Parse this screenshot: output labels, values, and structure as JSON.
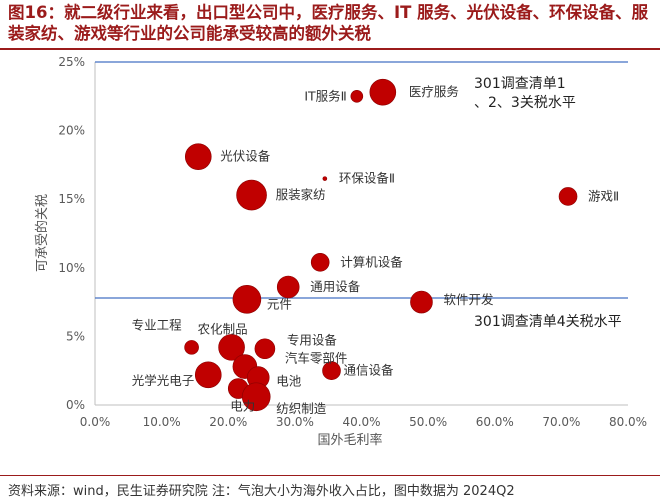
{
  "title": "图16：就二级行业来看，出口型公司中，医疗服务、IT 服务、光伏设备、环保设备、服装家纺、游戏等行业的公司能承受较高的额外关税",
  "source_note": "资料来源：wind，民生证券研究院 注：气泡大小为海外收入占比，图中数据为 2024Q2",
  "colors": {
    "title": "#9b1b1b",
    "bubble": "#c00000",
    "bubble_edge": "#8b0000",
    "refline": "#4472c4",
    "axis": "#bfbfbf"
  },
  "chart_data": {
    "type": "scatter",
    "subtype": "bubble",
    "xlabel": "国外毛利率",
    "ylabel": "可承受的关税",
    "xlim": [
      0,
      0.8
    ],
    "ylim": [
      0,
      0.25
    ],
    "x_ticks": [
      "0.0%",
      "10.0%",
      "20.0%",
      "30.0%",
      "40.0%",
      "50.0%",
      "60.0%",
      "70.0%",
      "80.0%"
    ],
    "y_ticks": [
      "0%",
      "5%",
      "10%",
      "15%",
      "20%",
      "25%"
    ],
    "grid": false,
    "reference_lines": [
      {
        "y": 0.25,
        "label": "301调查清单1、2、3关税水平"
      },
      {
        "y": 0.078,
        "label": "301调查清单4关税水平"
      }
    ],
    "points": [
      {
        "label": "医疗服务",
        "x": 0.432,
        "y": 0.228,
        "size": 13
      },
      {
        "label": "IT服务Ⅱ",
        "x": 0.393,
        "y": 0.225,
        "size": 6
      },
      {
        "label": "光伏设备",
        "x": 0.155,
        "y": 0.181,
        "size": 13
      },
      {
        "label": "环保设备Ⅱ",
        "x": 0.345,
        "y": 0.165,
        "size": 2
      },
      {
        "label": "服装家纺",
        "x": 0.235,
        "y": 0.153,
        "size": 15
      },
      {
        "label": "游戏Ⅱ",
        "x": 0.71,
        "y": 0.152,
        "size": 9
      },
      {
        "label": "计算机设备",
        "x": 0.338,
        "y": 0.104,
        "size": 9
      },
      {
        "label": "通用设备",
        "x": 0.29,
        "y": 0.086,
        "size": 11
      },
      {
        "label": "元件",
        "x": 0.228,
        "y": 0.077,
        "size": 14
      },
      {
        "label": "软件开发",
        "x": 0.49,
        "y": 0.075,
        "size": 11
      },
      {
        "label": "专业工程",
        "x": 0.145,
        "y": 0.042,
        "size": 7
      },
      {
        "label": "农化制品",
        "x": 0.205,
        "y": 0.042,
        "size": 13
      },
      {
        "label": "专用设备",
        "x": 0.255,
        "y": 0.041,
        "size": 10
      },
      {
        "label": "汽车零部件",
        "x": 0.225,
        "y": 0.028,
        "size": 12
      },
      {
        "label": "通信设备",
        "x": 0.355,
        "y": 0.025,
        "size": 9
      },
      {
        "label": "电池",
        "x": 0.245,
        "y": 0.02,
        "size": 11
      },
      {
        "label": "光学光电子",
        "x": 0.17,
        "y": 0.022,
        "size": 13
      },
      {
        "label": "电力",
        "x": 0.215,
        "y": 0.012,
        "size": 10
      },
      {
        "label": "纺织制造",
        "x": 0.242,
        "y": 0.006,
        "size": 14
      }
    ]
  }
}
